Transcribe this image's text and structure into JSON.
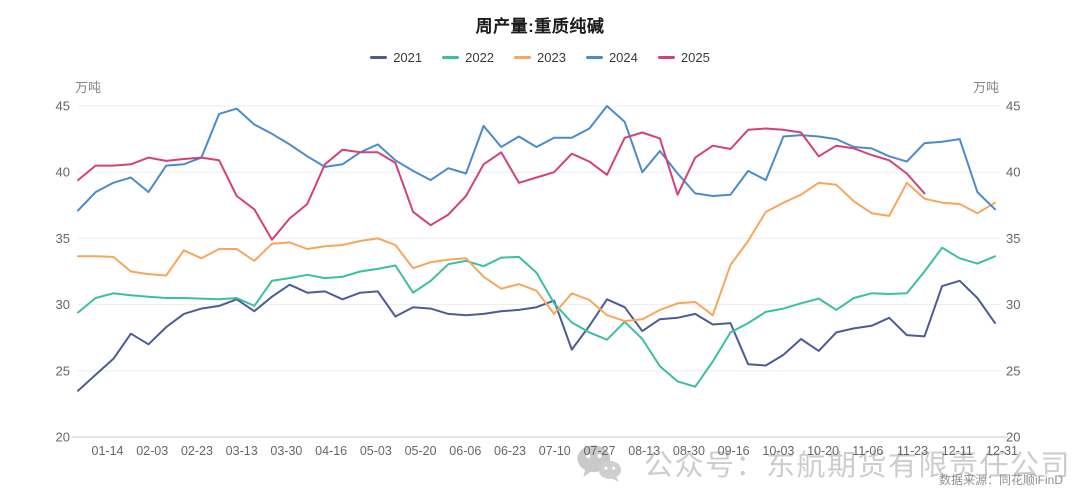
{
  "header": {
    "title": "周产量:重质纯碱"
  },
  "chart_data": {
    "type": "line",
    "title": "周产量:重质纯碱",
    "unit_label": "万吨",
    "ylabel": "万吨",
    "ylim": [
      20,
      45
    ],
    "yticks": [
      20,
      25,
      30,
      35,
      40,
      45
    ],
    "grid": "horizontal",
    "legend_position": "top-center",
    "x_tick_labels": [
      "01-14",
      "02-03",
      "02-23",
      "03-13",
      "03-30",
      "04-16",
      "05-03",
      "05-20",
      "06-06",
      "06-23",
      "07-10",
      "07-27",
      "08-13",
      "08-30",
      "09-16",
      "10-03",
      "10-20",
      "11-06",
      "11-23",
      "12-11",
      "12-31"
    ],
    "series": [
      {
        "name": "2021",
        "color": "#4c5c94",
        "values": [
          23.5,
          24.7,
          25.9,
          27.8,
          27.0,
          28.3,
          29.3,
          29.7,
          29.9,
          30.4,
          29.5,
          30.6,
          31.5,
          30.9,
          31.0,
          30.4,
          30.9,
          31.0,
          29.1,
          29.8,
          29.7,
          29.3,
          29.2,
          29.3,
          29.5,
          29.6,
          29.8,
          30.3,
          26.6,
          28.4,
          30.4,
          29.8,
          28.0,
          28.9,
          29.0,
          29.3,
          28.5,
          28.6,
          25.5,
          25.4,
          26.2,
          27.4,
          26.5,
          27.9,
          28.2,
          28.4,
          29.0,
          27.7,
          27.6,
          31.4,
          31.8,
          30.5,
          28.6
        ]
      },
      {
        "name": "2022",
        "color": "#39bfa4",
        "values": [
          29.4,
          30.5,
          30.85,
          30.7,
          30.6,
          30.5,
          30.5,
          30.45,
          30.4,
          30.5,
          29.9,
          31.8,
          32.0,
          32.25,
          32.0,
          32.1,
          32.5,
          32.7,
          32.95,
          30.9,
          31.8,
          33.05,
          33.3,
          32.9,
          33.55,
          33.6,
          32.4,
          30.1,
          28.65,
          27.9,
          27.35,
          28.7,
          27.4,
          25.35,
          24.2,
          23.8,
          25.7,
          27.9,
          28.6,
          29.45,
          29.7,
          30.1,
          30.45,
          29.6,
          30.5,
          30.85,
          30.8,
          30.85,
          32.5,
          34.3,
          33.5,
          33.1,
          33.65
        ]
      },
      {
        "name": "2023",
        "color": "#f5a75b",
        "values": [
          33.65,
          33.65,
          33.6,
          32.5,
          32.3,
          32.2,
          34.1,
          33.5,
          34.2,
          34.2,
          33.3,
          34.6,
          34.7,
          34.2,
          34.4,
          34.5,
          34.8,
          35.0,
          34.5,
          32.75,
          33.2,
          33.4,
          33.5,
          32.1,
          31.2,
          31.55,
          31.05,
          29.3,
          30.85,
          30.35,
          29.2,
          28.75,
          28.9,
          29.6,
          30.1,
          30.2,
          29.2,
          33.0,
          34.8,
          37.0,
          37.7,
          38.3,
          39.2,
          39.05,
          37.8,
          36.9,
          36.7,
          39.2,
          38.0,
          37.7,
          37.6,
          36.9,
          37.7
        ]
      },
      {
        "name": "2024",
        "color": "#4a8bc9",
        "values": [
          37.1,
          38.5,
          39.2,
          39.6,
          38.5,
          40.5,
          40.6,
          41.1,
          44.4,
          44.8,
          43.6,
          42.9,
          42.1,
          41.2,
          40.4,
          40.6,
          41.5,
          42.1,
          40.9,
          40.1,
          39.4,
          40.3,
          39.9,
          43.5,
          41.9,
          42.7,
          41.9,
          42.6,
          42.6,
          43.3,
          45.0,
          43.8,
          40.0,
          41.6,
          39.9,
          38.4,
          38.2,
          38.3,
          40.1,
          39.4,
          42.7,
          42.8,
          42.7,
          42.5,
          41.9,
          41.8,
          41.2,
          40.8,
          42.2,
          42.3,
          42.5,
          38.5,
          37.2
        ]
      },
      {
        "name": "2025",
        "color": "#d2417c",
        "values": [
          39.4,
          40.5,
          40.5,
          40.6,
          41.1,
          40.85,
          41.0,
          41.1,
          40.9,
          38.2,
          37.2,
          34.9,
          36.5,
          37.6,
          40.6,
          41.7,
          41.5,
          41.5,
          40.7,
          37.0,
          36.0,
          36.8,
          38.2,
          40.6,
          41.5,
          39.2,
          39.6,
          40.0,
          41.4,
          40.8,
          39.8,
          42.6,
          43.0,
          42.55,
          38.3,
          41.1,
          42.0,
          41.75,
          43.2,
          43.3,
          43.2,
          43.0,
          41.2,
          42.0,
          41.8,
          41.3,
          40.9,
          39.9,
          38.4
        ]
      }
    ]
  },
  "watermark": {
    "icon": "wechat-icon",
    "text": "公众号：东航期货有限责任公司"
  },
  "footer": {
    "source": "数据来源：同花顺iFinD"
  }
}
